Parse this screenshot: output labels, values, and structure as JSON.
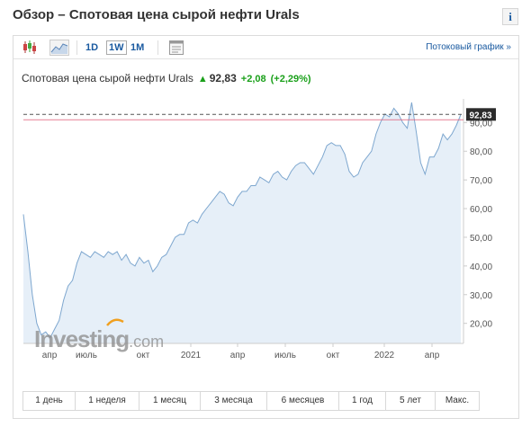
{
  "page": {
    "title": "Обзор – Спотовая цена сырой нефти Urals",
    "info_icon": "i"
  },
  "toolbar": {
    "candles_icon": "candlestick-chart-icon",
    "area_icon": "area-chart-icon",
    "intervals": [
      "1D",
      "1W",
      "1M"
    ],
    "active_interval": "1W",
    "settings_icon": "chart-settings-icon",
    "stream_link": "Потоковый график »"
  },
  "quote": {
    "name": "Спотовая цена сырой нефти Urals",
    "direction": "up",
    "price": "92,83",
    "change": "+2,08",
    "change_pct": "(+2,29%)"
  },
  "watermark": {
    "brand": "Investing",
    "suffix": ".com"
  },
  "colors": {
    "line": "#7ea7cf",
    "area": "#e6eff8",
    "up": "#1aa01a",
    "link": "#1a5aa0",
    "price_line": "#e0607a"
  },
  "chart_data": {
    "type": "area",
    "title": "",
    "xlabel": "",
    "ylabel": "",
    "x_ticks": [
      "апр",
      "июль",
      "окт",
      "2021",
      "апр",
      "июль",
      "окт",
      "2022",
      "апр"
    ],
    "y_ticks": [
      "20,00",
      "30,00",
      "40,00",
      "50,00",
      "60,00",
      "70,00",
      "80,00",
      "90,00"
    ],
    "ylim": [
      13,
      97
    ],
    "last_value_label": "92,83",
    "grid": false,
    "series": [
      {
        "values": [
          58,
          45,
          30,
          20,
          16,
          17,
          15,
          18,
          21,
          28,
          33,
          35,
          41,
          45,
          44,
          43,
          45,
          44,
          43,
          45,
          44,
          45,
          42,
          44,
          41,
          40,
          43,
          41,
          42,
          38,
          40,
          43,
          44,
          47,
          50,
          51,
          51,
          55,
          56,
          55,
          58,
          60,
          62,
          64,
          66,
          65,
          62,
          61,
          64,
          66,
          66,
          68,
          68,
          71,
          70,
          69,
          72,
          73,
          71,
          70,
          73,
          75,
          76,
          76,
          74,
          72,
          75,
          78,
          82,
          83,
          82,
          82,
          79,
          73,
          71,
          72,
          76,
          78,
          80,
          86,
          90,
          93,
          92,
          95,
          93,
          90,
          88,
          97,
          87,
          76,
          72,
          78,
          78,
          81,
          86,
          84,
          86,
          89,
          92.83
        ]
      }
    ]
  },
  "ranges": [
    "1 день",
    "1 неделя",
    "1 месяц",
    "3 месяца",
    "6 месяцев",
    "1 год",
    "5 лет",
    "Макс."
  ]
}
